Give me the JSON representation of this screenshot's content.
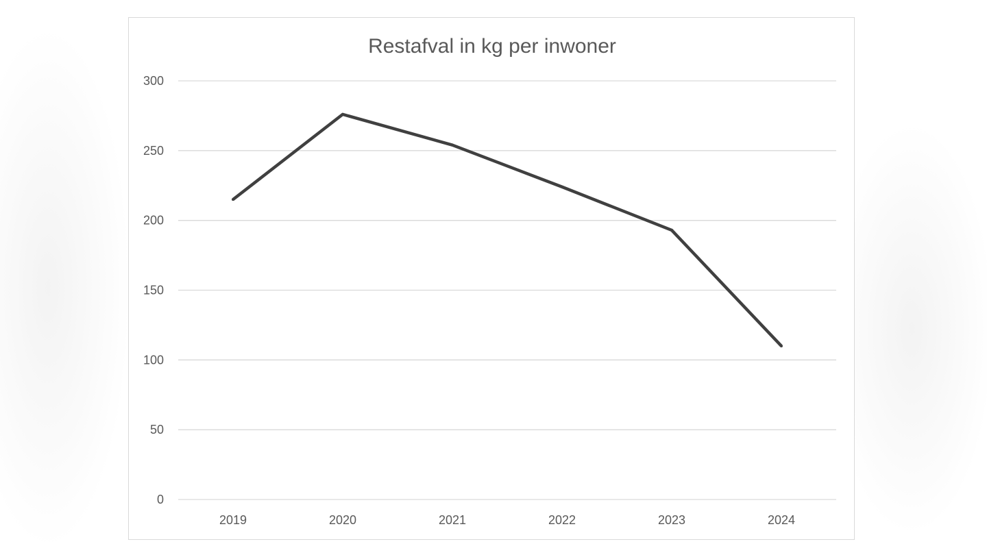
{
  "chart_data": {
    "type": "line",
    "title": "Restafval in kg per inwoner",
    "xlabel": "",
    "ylabel": "",
    "categories": [
      "2019",
      "2020",
      "2021",
      "2022",
      "2023",
      "2024"
    ],
    "series": [
      {
        "values": [
          215,
          276,
          254,
          224,
          193,
          110
        ],
        "color": "#404040"
      }
    ],
    "ylim": [
      0,
      300
    ],
    "yticks": [
      0,
      50,
      100,
      150,
      200,
      250,
      300
    ],
    "grid": true,
    "legend": "none",
    "colors": {
      "line": "#404040",
      "grid": "#d9d9d9",
      "text": "#595959",
      "border": "#d9d9d9"
    }
  }
}
